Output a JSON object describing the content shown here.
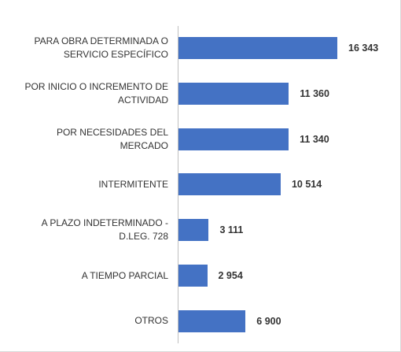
{
  "chart_data": {
    "type": "bar",
    "orientation": "horizontal",
    "categories": [
      "PARA OBRA DETERMINADA O SERVICIO ESPECÍFICO",
      "POR INICIO O INCREMENTO DE ACTIVIDAD",
      "POR NECESIDADES DEL MERCADO",
      "INTERMITENTE",
      "A PLAZO INDETERMINADO - D.LEG. 728",
      "A TIEMPO PARCIAL",
      "OTROS"
    ],
    "values": [
      16343,
      11360,
      11340,
      10514,
      3111,
      2954,
      6900
    ],
    "value_labels": [
      "16 343",
      "11 360",
      "11 340",
      "10 514",
      "3 111",
      "2 954",
      "6 900"
    ],
    "color": "#4472c4"
  }
}
